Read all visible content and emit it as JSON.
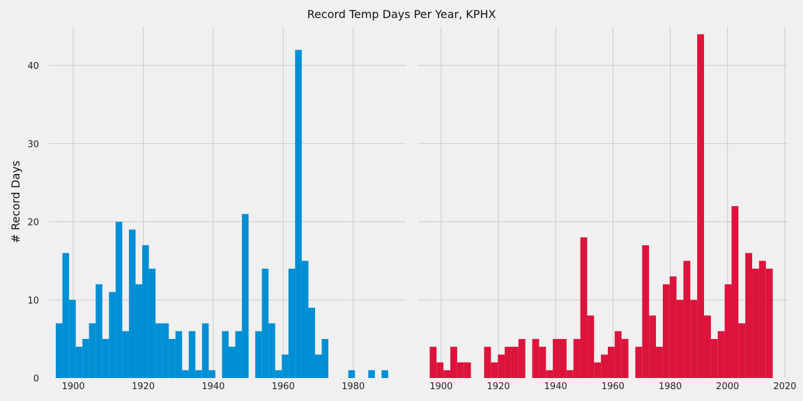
{
  "chart_data": {
    "title": "Record Temp Days Per Year, KPHX",
    "type": "bar",
    "ylabel": "# Record Days",
    "ylim": [
      0,
      45
    ],
    "grid": true,
    "panels": [
      {
        "name": "",
        "color": "#008fd5",
        "bin_width": 1.9,
        "xlim": [
          1893,
          1995
        ],
        "x_ticks": [
          1900,
          1920,
          1940,
          1960,
          1980
        ],
        "y_ticks": [
          0,
          10,
          20,
          30,
          40
        ],
        "bins": [
          {
            "x": 1895.0,
            "y": 7
          },
          {
            "x": 1896.9,
            "y": 16
          },
          {
            "x": 1898.8,
            "y": 10
          },
          {
            "x": 1900.7,
            "y": 4
          },
          {
            "x": 1902.6,
            "y": 5
          },
          {
            "x": 1904.5,
            "y": 7
          },
          {
            "x": 1906.4,
            "y": 12
          },
          {
            "x": 1908.3,
            "y": 5
          },
          {
            "x": 1910.2,
            "y": 11
          },
          {
            "x": 1912.1,
            "y": 20
          },
          {
            "x": 1914.0,
            "y": 6
          },
          {
            "x": 1915.9,
            "y": 19
          },
          {
            "x": 1917.8,
            "y": 12
          },
          {
            "x": 1919.7,
            "y": 17
          },
          {
            "x": 1921.6,
            "y": 14
          },
          {
            "x": 1923.5,
            "y": 7
          },
          {
            "x": 1925.4,
            "y": 7
          },
          {
            "x": 1927.3,
            "y": 5
          },
          {
            "x": 1929.2,
            "y": 6
          },
          {
            "x": 1931.1,
            "y": 1
          },
          {
            "x": 1933.0,
            "y": 6
          },
          {
            "x": 1934.9,
            "y": 1
          },
          {
            "x": 1936.8,
            "y": 7
          },
          {
            "x": 1938.7,
            "y": 1
          },
          {
            "x": 1942.5,
            "y": 6
          },
          {
            "x": 1944.4,
            "y": 4
          },
          {
            "x": 1946.3,
            "y": 6
          },
          {
            "x": 1948.2,
            "y": 21
          },
          {
            "x": 1952.0,
            "y": 6
          },
          {
            "x": 1953.9,
            "y": 14
          },
          {
            "x": 1955.8,
            "y": 7
          },
          {
            "x": 1957.7,
            "y": 1
          },
          {
            "x": 1959.6,
            "y": 3
          },
          {
            "x": 1961.5,
            "y": 14
          },
          {
            "x": 1963.4,
            "y": 42
          },
          {
            "x": 1965.3,
            "y": 15
          },
          {
            "x": 1967.2,
            "y": 9
          },
          {
            "x": 1969.1,
            "y": 3
          },
          {
            "x": 1971.0,
            "y": 5
          },
          {
            "x": 1978.6,
            "y": 1
          },
          {
            "x": 1984.3,
            "y": 1
          },
          {
            "x": 1988.1,
            "y": 1
          }
        ]
      },
      {
        "name": "",
        "color": "#dc143c",
        "bin_width": 2.4,
        "xlim": [
          1892,
          2021
        ],
        "x_ticks": [
          1900,
          1920,
          1940,
          1960,
          1980,
          2000,
          2020
        ],
        "y_ticks": [],
        "bins": [
          {
            "x": 1896.0,
            "y": 4
          },
          {
            "x": 1898.4,
            "y": 2
          },
          {
            "x": 1900.8,
            "y": 1
          },
          {
            "x": 1903.2,
            "y": 4
          },
          {
            "x": 1905.6,
            "y": 2
          },
          {
            "x": 1908.0,
            "y": 2
          },
          {
            "x": 1915.0,
            "y": 4
          },
          {
            "x": 1917.4,
            "y": 2
          },
          {
            "x": 1919.8,
            "y": 3
          },
          {
            "x": 1922.2,
            "y": 4
          },
          {
            "x": 1924.6,
            "y": 4
          },
          {
            "x": 1927.0,
            "y": 5
          },
          {
            "x": 1931.8,
            "y": 5
          },
          {
            "x": 1934.2,
            "y": 4
          },
          {
            "x": 1936.6,
            "y": 1
          },
          {
            "x": 1939.0,
            "y": 5
          },
          {
            "x": 1941.4,
            "y": 5
          },
          {
            "x": 1943.8,
            "y": 1
          },
          {
            "x": 1946.2,
            "y": 5
          },
          {
            "x": 1948.6,
            "y": 18
          },
          {
            "x": 1951.0,
            "y": 8
          },
          {
            "x": 1953.4,
            "y": 2
          },
          {
            "x": 1955.8,
            "y": 3
          },
          {
            "x": 1958.2,
            "y": 4
          },
          {
            "x": 1960.6,
            "y": 6
          },
          {
            "x": 1963.0,
            "y": 5
          },
          {
            "x": 1967.8,
            "y": 4
          },
          {
            "x": 1970.2,
            "y": 17
          },
          {
            "x": 1972.6,
            "y": 8
          },
          {
            "x": 1975.0,
            "y": 4
          },
          {
            "x": 1977.4,
            "y": 12
          },
          {
            "x": 1979.8,
            "y": 13
          },
          {
            "x": 1982.2,
            "y": 10
          },
          {
            "x": 1984.6,
            "y": 15
          },
          {
            "x": 1987.0,
            "y": 10
          },
          {
            "x": 1989.4,
            "y": 44
          },
          {
            "x": 1991.8,
            "y": 8
          },
          {
            "x": 1994.2,
            "y": 5
          },
          {
            "x": 1996.6,
            "y": 6
          },
          {
            "x": 1999.0,
            "y": 12
          },
          {
            "x": 2001.4,
            "y": 22
          },
          {
            "x": 2003.8,
            "y": 7
          },
          {
            "x": 2006.2,
            "y": 16
          },
          {
            "x": 2008.6,
            "y": 14
          },
          {
            "x": 2011.0,
            "y": 15
          },
          {
            "x": 2013.4,
            "y": 14
          }
        ]
      }
    ]
  }
}
